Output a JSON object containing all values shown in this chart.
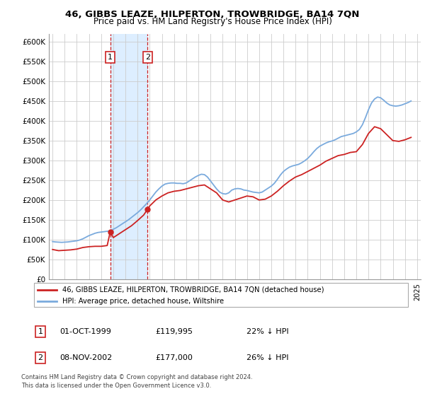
{
  "title": "46, GIBBS LEAZE, HILPERTON, TROWBRIDGE, BA14 7QN",
  "subtitle": "Price paid vs. HM Land Registry's House Price Index (HPI)",
  "ylabel_ticks": [
    "£0",
    "£50K",
    "£100K",
    "£150K",
    "£200K",
    "£250K",
    "£300K",
    "£350K",
    "£400K",
    "£450K",
    "£500K",
    "£550K",
    "£600K"
  ],
  "ylim": [
    0,
    620000
  ],
  "xlim_start": 1994.7,
  "xlim_end": 2025.3,
  "sale1_x": 1999.75,
  "sale1_y": 119995,
  "sale2_x": 2002.83,
  "sale2_y": 177000,
  "sale1_label": "1",
  "sale2_label": "2",
  "sale1_date": "01-OCT-1999",
  "sale1_price": "£119,995",
  "sale1_hpi": "22% ↓ HPI",
  "sale2_date": "08-NOV-2002",
  "sale2_price": "£177,000",
  "sale2_hpi": "26% ↓ HPI",
  "hpi_line_color": "#7aaadd",
  "price_line_color": "#cc2222",
  "shade_color": "#ddeeff",
  "grid_color": "#cccccc",
  "legend_label_red": "46, GIBBS LEAZE, HILPERTON, TROWBRIDGE, BA14 7QN (detached house)",
  "legend_label_blue": "HPI: Average price, detached house, Wiltshire",
  "footnote1": "Contains HM Land Registry data © Crown copyright and database right 2024.",
  "footnote2": "This data is licensed under the Open Government Licence v3.0.",
  "marker_box_color": "#cc2222",
  "hpi_years": [
    1995,
    1995.25,
    1995.5,
    1995.75,
    1996,
    1996.25,
    1996.5,
    1996.75,
    1997,
    1997.25,
    1997.5,
    1997.75,
    1998,
    1998.25,
    1998.5,
    1998.75,
    1999,
    1999.25,
    1999.5,
    1999.75,
    2000,
    2000.25,
    2000.5,
    2000.75,
    2001,
    2001.25,
    2001.5,
    2001.75,
    2002,
    2002.25,
    2002.5,
    2002.75,
    2003,
    2003.25,
    2003.5,
    2003.75,
    2004,
    2004.25,
    2004.5,
    2004.75,
    2005,
    2005.25,
    2005.5,
    2005.75,
    2006,
    2006.25,
    2006.5,
    2006.75,
    2007,
    2007.25,
    2007.5,
    2007.75,
    2008,
    2008.25,
    2008.5,
    2008.75,
    2009,
    2009.25,
    2009.5,
    2009.75,
    2010,
    2010.25,
    2010.5,
    2010.75,
    2011,
    2011.25,
    2011.5,
    2011.75,
    2012,
    2012.25,
    2012.5,
    2012.75,
    2013,
    2013.25,
    2013.5,
    2013.75,
    2014,
    2014.25,
    2014.5,
    2014.75,
    2015,
    2015.25,
    2015.5,
    2015.75,
    2016,
    2016.25,
    2016.5,
    2016.75,
    2017,
    2017.25,
    2017.5,
    2017.75,
    2018,
    2018.25,
    2018.5,
    2018.75,
    2019,
    2019.25,
    2019.5,
    2019.75,
    2020,
    2020.25,
    2020.5,
    2020.75,
    2021,
    2021.25,
    2021.5,
    2021.75,
    2022,
    2022.25,
    2022.5,
    2022.75,
    2023,
    2023.25,
    2023.5,
    2023.75,
    2024,
    2024.25,
    2024.5
  ],
  "hpi_values": [
    95000,
    94000,
    93500,
    93000,
    93500,
    94000,
    95000,
    96000,
    97000,
    99000,
    102000,
    106000,
    110000,
    113000,
    116000,
    118000,
    119000,
    120000,
    121000,
    122000,
    126000,
    130000,
    135000,
    140000,
    145000,
    150000,
    156000,
    162000,
    168000,
    175000,
    183000,
    191000,
    200000,
    210000,
    220000,
    228000,
    235000,
    240000,
    242000,
    243000,
    243000,
    242000,
    242000,
    241000,
    243000,
    248000,
    253000,
    258000,
    262000,
    265000,
    264000,
    258000,
    248000,
    238000,
    228000,
    220000,
    216000,
    215000,
    218000,
    225000,
    228000,
    229000,
    228000,
    225000,
    224000,
    222000,
    220000,
    219000,
    218000,
    220000,
    225000,
    230000,
    235000,
    242000,
    252000,
    263000,
    272000,
    278000,
    283000,
    286000,
    288000,
    290000,
    294000,
    299000,
    305000,
    313000,
    322000,
    330000,
    336000,
    340000,
    344000,
    347000,
    349000,
    352000,
    356000,
    360000,
    362000,
    364000,
    366000,
    368000,
    372000,
    378000,
    390000,
    408000,
    428000,
    445000,
    455000,
    460000,
    458000,
    452000,
    445000,
    440000,
    438000,
    437000,
    438000,
    440000,
    443000,
    446000,
    450000
  ],
  "price_years": [
    1995,
    1995.5,
    1996,
    1996.5,
    1997,
    1997.5,
    1998,
    1998.5,
    1999,
    1999.5,
    1999.75,
    2000,
    2000.5,
    2001,
    2001.5,
    2002,
    2002.5,
    2002.83,
    2003,
    2003.5,
    2004,
    2004.5,
    2005,
    2005.5,
    2006,
    2006.5,
    2007,
    2007.5,
    2008,
    2008.5,
    2009,
    2009.5,
    2010,
    2010.5,
    2011,
    2011.5,
    2012,
    2012.5,
    2013,
    2013.5,
    2014,
    2014.5,
    2015,
    2015.5,
    2016,
    2016.5,
    2017,
    2017.5,
    2018,
    2018.5,
    2019,
    2019.5,
    2020,
    2020.5,
    2021,
    2021.5,
    2022,
    2022.5,
    2023,
    2023.5,
    2024,
    2024.5
  ],
  "price_values": [
    75000,
    72000,
    73000,
    74000,
    76000,
    80000,
    82000,
    83000,
    83000,
    85000,
    119995,
    105000,
    115000,
    125000,
    135000,
    148000,
    162000,
    177000,
    185000,
    200000,
    210000,
    218000,
    222000,
    224000,
    228000,
    232000,
    236000,
    238000,
    228000,
    218000,
    200000,
    195000,
    200000,
    205000,
    210000,
    208000,
    200000,
    202000,
    210000,
    222000,
    236000,
    248000,
    258000,
    264000,
    272000,
    280000,
    288000,
    298000,
    305000,
    312000,
    315000,
    320000,
    322000,
    340000,
    368000,
    385000,
    380000,
    365000,
    350000,
    348000,
    352000,
    358000
  ]
}
